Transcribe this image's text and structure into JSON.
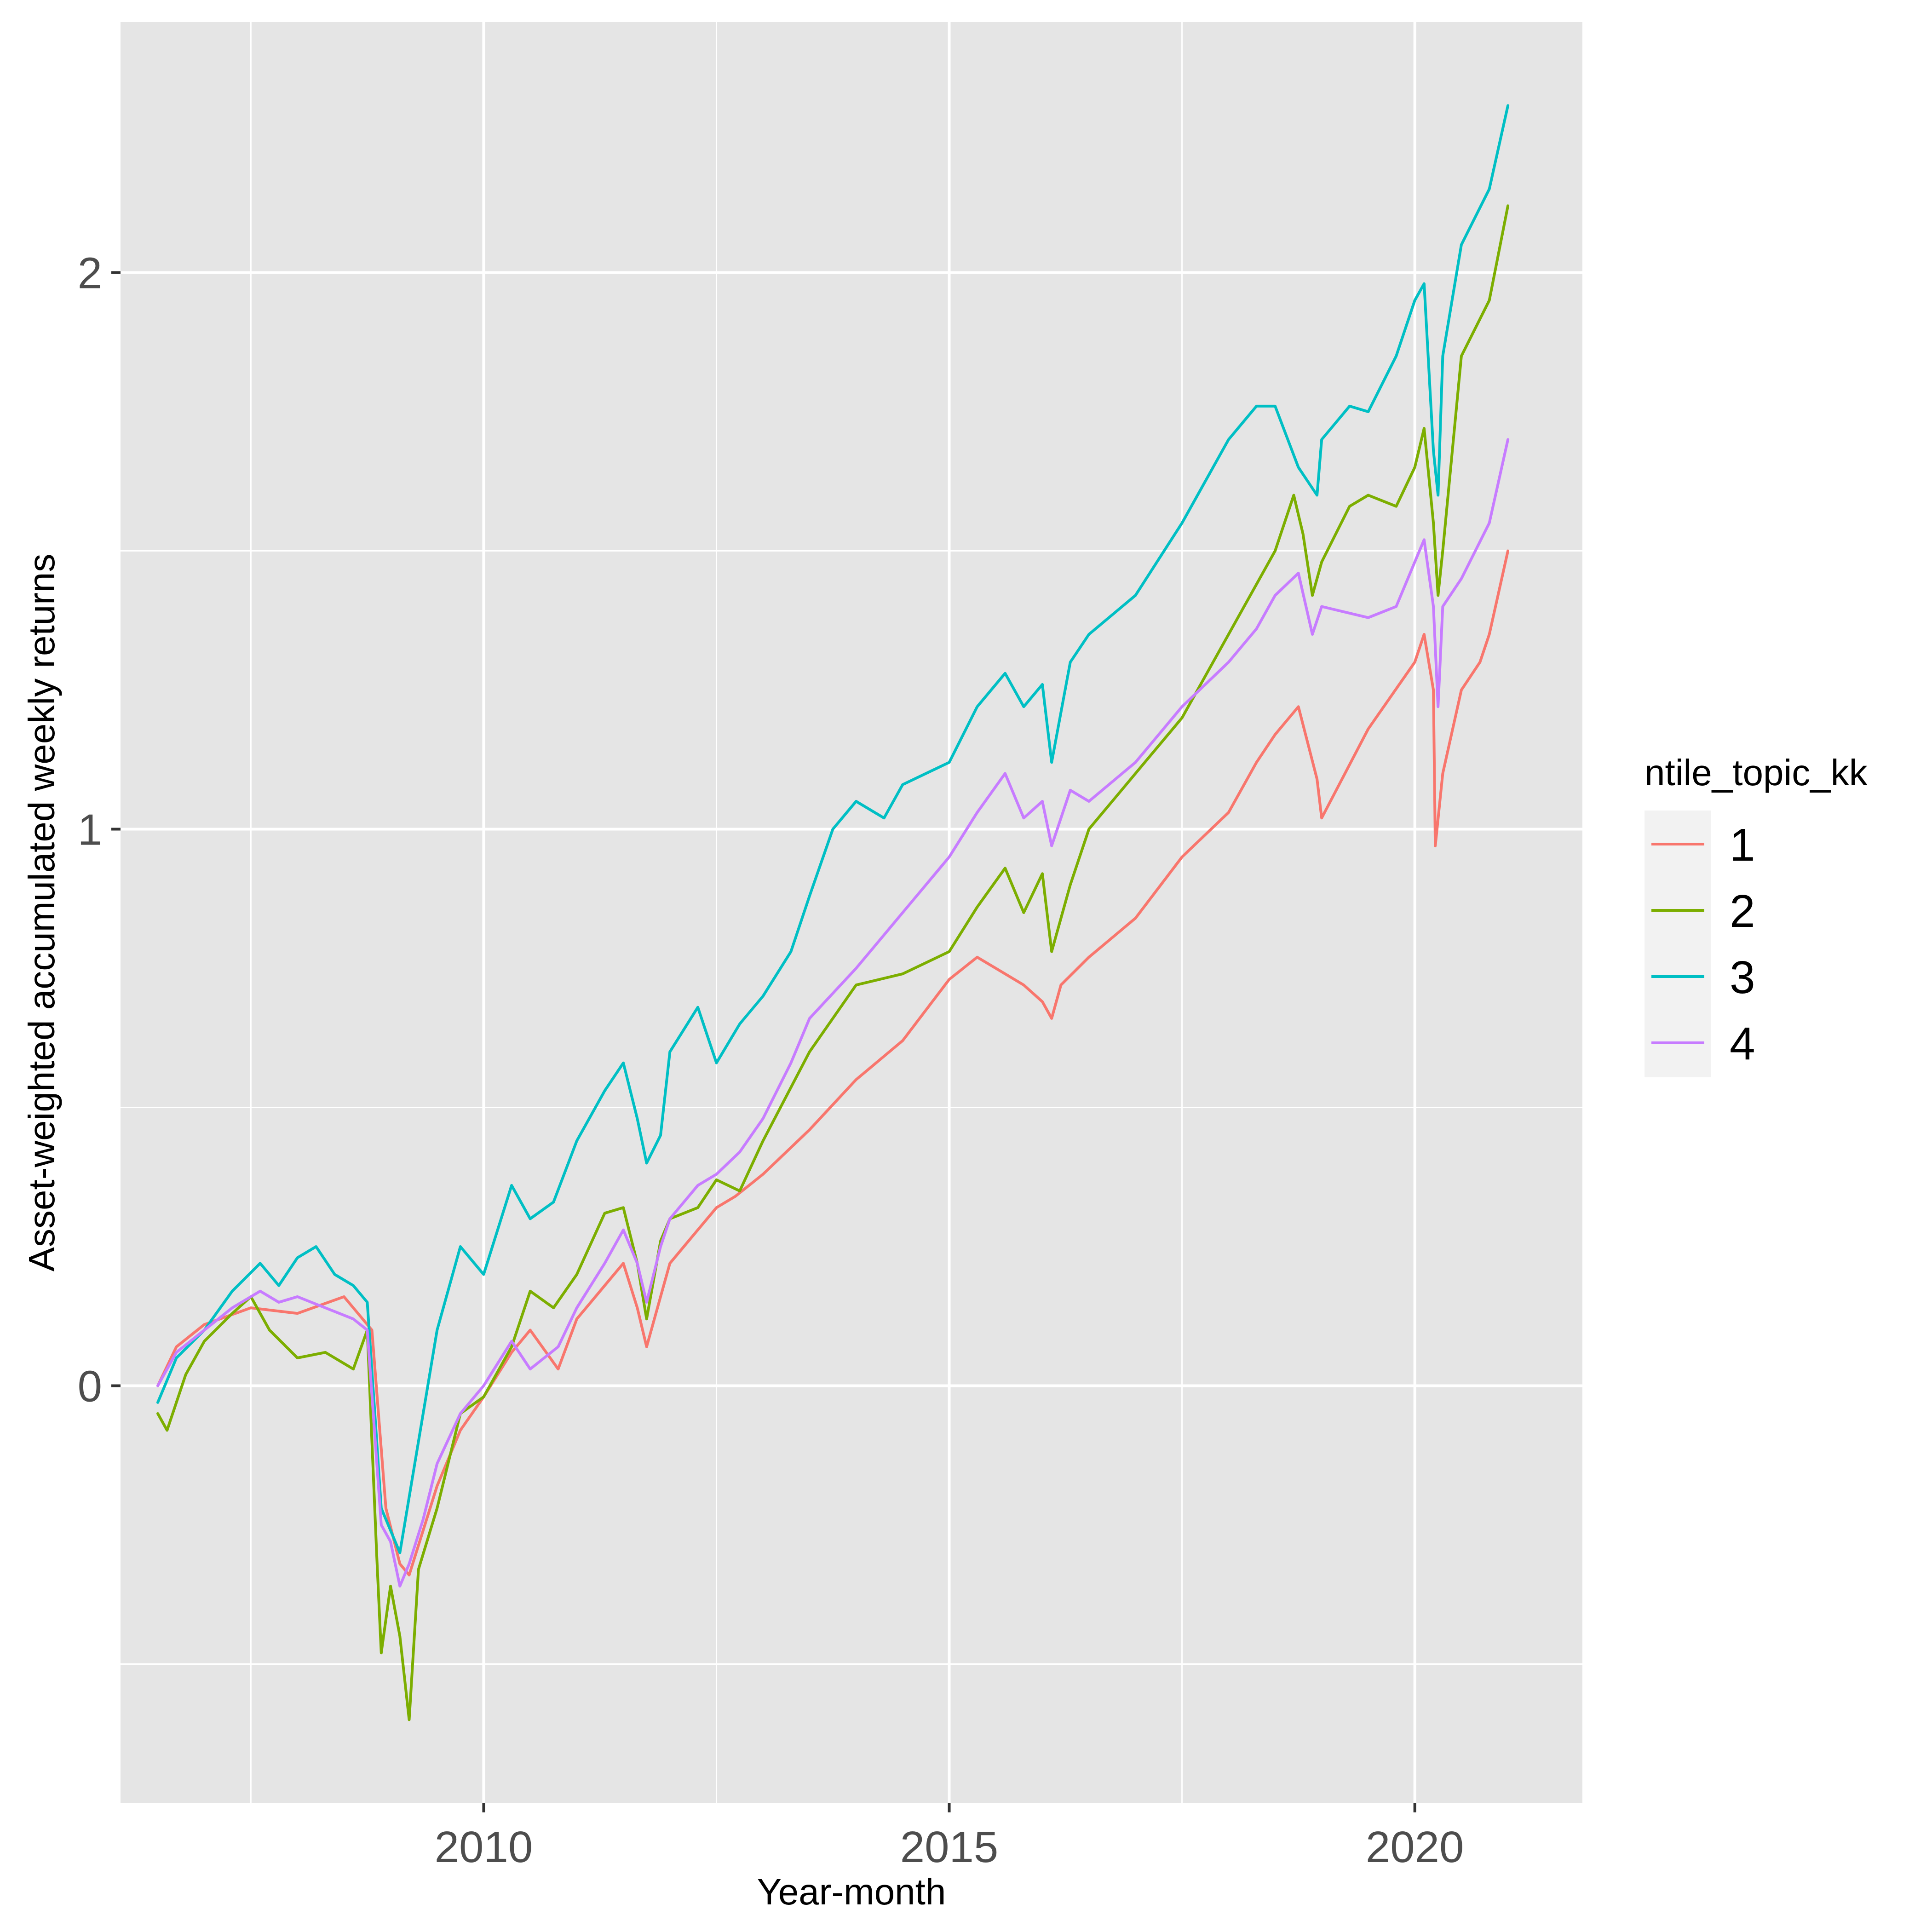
{
  "chart_data": {
    "type": "line",
    "title": "",
    "xlabel": "Year-month",
    "ylabel": "Asset-weighted accumulated weekly returns",
    "xlim": [
      2006.1,
      2021.8
    ],
    "ylim": [
      -0.75,
      2.45
    ],
    "x_ticks": [
      {
        "value": 2010,
        "label": "2010"
      },
      {
        "value": 2015,
        "label": "2015"
      },
      {
        "value": 2020,
        "label": "2020"
      }
    ],
    "y_ticks": [
      {
        "value": 0,
        "label": "0"
      },
      {
        "value": 1,
        "label": "1"
      },
      {
        "value": 2,
        "label": "2"
      }
    ],
    "grid": true,
    "background": "#e5e5e5",
    "legend": {
      "title": "ntile_topic_kk",
      "position": "right"
    },
    "series": [
      {
        "name": "1",
        "color": "#f8766d",
        "x": [
          2006.5,
          2006.7,
          2007.0,
          2007.5,
          2008.0,
          2008.5,
          2008.8,
          2008.95,
          2009.1,
          2009.2,
          2009.5,
          2009.75,
          2010.0,
          2010.3,
          2010.5,
          2010.8,
          2011.0,
          2011.3,
          2011.5,
          2011.65,
          2011.75,
          2011.9,
          2012.0,
          2012.3,
          2012.5,
          2012.7,
          2013.0,
          2013.5,
          2014.0,
          2014.5,
          2015.0,
          2015.3,
          2015.6,
          2015.8,
          2016.0,
          2016.1,
          2016.2,
          2016.5,
          2017.0,
          2017.5,
          2018.0,
          2018.3,
          2018.5,
          2018.75,
          2018.95,
          2019.0,
          2019.5,
          2020.0,
          2020.1,
          2020.2,
          2020.22,
          2020.3,
          2020.5,
          2020.7,
          2020.8,
          2021.0
        ],
        "y": [
          0.0,
          0.07,
          0.11,
          0.14,
          0.13,
          0.16,
          0.1,
          -0.22,
          -0.32,
          -0.34,
          -0.18,
          -0.08,
          -0.02,
          0.06,
          0.1,
          0.03,
          0.12,
          0.18,
          0.22,
          0.14,
          0.07,
          0.16,
          0.22,
          0.28,
          0.32,
          0.34,
          0.38,
          0.46,
          0.55,
          0.62,
          0.73,
          0.77,
          0.74,
          0.72,
          0.69,
          0.66,
          0.72,
          0.77,
          0.84,
          0.95,
          1.03,
          1.12,
          1.17,
          1.22,
          1.09,
          1.02,
          1.18,
          1.3,
          1.35,
          1.25,
          0.97,
          1.1,
          1.25,
          1.3,
          1.35,
          1.5
        ]
      },
      {
        "name": "2",
        "color": "#7cae00",
        "x": [
          2006.5,
          2006.6,
          2006.8,
          2007.0,
          2007.3,
          2007.5,
          2007.7,
          2008.0,
          2008.3,
          2008.6,
          2008.75,
          2008.85,
          2008.9,
          2009.0,
          2009.1,
          2009.2,
          2009.3,
          2009.5,
          2009.75,
          2010.0,
          2010.3,
          2010.5,
          2010.75,
          2011.0,
          2011.3,
          2011.5,
          2011.65,
          2011.75,
          2011.9,
          2012.0,
          2012.3,
          2012.5,
          2012.75,
          2013.0,
          2013.5,
          2014.0,
          2014.5,
          2015.0,
          2015.3,
          2015.6,
          2015.8,
          2016.0,
          2016.1,
          2016.3,
          2016.5,
          2017.0,
          2017.5,
          2018.0,
          2018.5,
          2018.7,
          2018.8,
          2018.9,
          2019.0,
          2019.3,
          2019.5,
          2019.8,
          2020.0,
          2020.1,
          2020.2,
          2020.25,
          2020.3,
          2020.5,
          2020.8,
          2021.0
        ],
        "y": [
          -0.05,
          -0.08,
          0.02,
          0.08,
          0.13,
          0.16,
          0.1,
          0.05,
          0.06,
          0.03,
          0.1,
          -0.3,
          -0.48,
          -0.36,
          -0.45,
          -0.6,
          -0.33,
          -0.22,
          -0.05,
          -0.02,
          0.07,
          0.17,
          0.14,
          0.2,
          0.31,
          0.32,
          0.22,
          0.12,
          0.26,
          0.3,
          0.32,
          0.37,
          0.35,
          0.44,
          0.6,
          0.72,
          0.74,
          0.78,
          0.86,
          0.93,
          0.85,
          0.92,
          0.78,
          0.9,
          1.0,
          1.1,
          1.2,
          1.35,
          1.5,
          1.6,
          1.53,
          1.42,
          1.48,
          1.58,
          1.6,
          1.58,
          1.65,
          1.72,
          1.55,
          1.42,
          1.5,
          1.85,
          1.95,
          2.12
        ]
      },
      {
        "name": "3",
        "color": "#00bfc4",
        "x": [
          2006.5,
          2006.7,
          2007.0,
          2007.3,
          2007.6,
          2007.8,
          2008.0,
          2008.2,
          2008.4,
          2008.6,
          2008.75,
          2008.9,
          2009.1,
          2009.2,
          2009.4,
          2009.5,
          2009.75,
          2010.0,
          2010.3,
          2010.5,
          2010.75,
          2011.0,
          2011.3,
          2011.5,
          2011.65,
          2011.75,
          2011.9,
          2012.0,
          2012.3,
          2012.5,
          2012.75,
          2013.0,
          2013.3,
          2013.5,
          2013.75,
          2014.0,
          2014.3,
          2014.5,
          2015.0,
          2015.3,
          2015.6,
          2015.8,
          2016.0,
          2016.1,
          2016.3,
          2016.5,
          2017.0,
          2017.5,
          2018.0,
          2018.3,
          2018.5,
          2018.75,
          2018.95,
          2019.0,
          2019.3,
          2019.5,
          2019.8,
          2020.0,
          2020.1,
          2020.2,
          2020.25,
          2020.3,
          2020.5,
          2020.8,
          2021.0
        ],
        "y": [
          -0.03,
          0.05,
          0.1,
          0.17,
          0.22,
          0.18,
          0.23,
          0.25,
          0.2,
          0.18,
          0.15,
          -0.22,
          -0.3,
          -0.2,
          0.0,
          0.1,
          0.25,
          0.2,
          0.36,
          0.3,
          0.33,
          0.44,
          0.53,
          0.58,
          0.48,
          0.4,
          0.45,
          0.6,
          0.68,
          0.58,
          0.65,
          0.7,
          0.78,
          0.88,
          1.0,
          1.05,
          1.02,
          1.08,
          1.12,
          1.22,
          1.28,
          1.22,
          1.26,
          1.12,
          1.3,
          1.35,
          1.42,
          1.55,
          1.7,
          1.76,
          1.76,
          1.65,
          1.6,
          1.7,
          1.76,
          1.75,
          1.85,
          1.95,
          1.98,
          1.68,
          1.6,
          1.85,
          2.05,
          2.15,
          2.3
        ]
      },
      {
        "name": "4",
        "color": "#c77cff",
        "x": [
          2006.5,
          2006.7,
          2007.0,
          2007.3,
          2007.6,
          2007.8,
          2008.0,
          2008.3,
          2008.6,
          2008.75,
          2008.9,
          2009.0,
          2009.1,
          2009.2,
          2009.35,
          2009.5,
          2009.75,
          2010.0,
          2010.3,
          2010.5,
          2010.8,
          2011.0,
          2011.3,
          2011.5,
          2011.65,
          2011.75,
          2011.9,
          2012.0,
          2012.3,
          2012.5,
          2012.75,
          2013.0,
          2013.3,
          2013.5,
          2014.0,
          2014.5,
          2015.0,
          2015.3,
          2015.6,
          2015.8,
          2016.0,
          2016.1,
          2016.3,
          2016.5,
          2017.0,
          2017.5,
          2018.0,
          2018.3,
          2018.5,
          2018.75,
          2018.9,
          2019.0,
          2019.5,
          2019.8,
          2020.0,
          2020.1,
          2020.2,
          2020.25,
          2020.3,
          2020.5,
          2020.8,
          2021.0
        ],
        "y": [
          0.0,
          0.06,
          0.1,
          0.14,
          0.17,
          0.15,
          0.16,
          0.14,
          0.12,
          0.1,
          -0.25,
          -0.28,
          -0.36,
          -0.32,
          -0.24,
          -0.14,
          -0.05,
          0.0,
          0.08,
          0.03,
          0.07,
          0.14,
          0.22,
          0.28,
          0.22,
          0.15,
          0.25,
          0.3,
          0.36,
          0.38,
          0.42,
          0.48,
          0.58,
          0.66,
          0.75,
          0.85,
          0.95,
          1.03,
          1.1,
          1.02,
          1.05,
          0.97,
          1.07,
          1.05,
          1.12,
          1.22,
          1.3,
          1.36,
          1.42,
          1.46,
          1.35,
          1.4,
          1.38,
          1.4,
          1.48,
          1.52,
          1.4,
          1.22,
          1.4,
          1.45,
          1.55,
          1.7
        ]
      }
    ]
  }
}
